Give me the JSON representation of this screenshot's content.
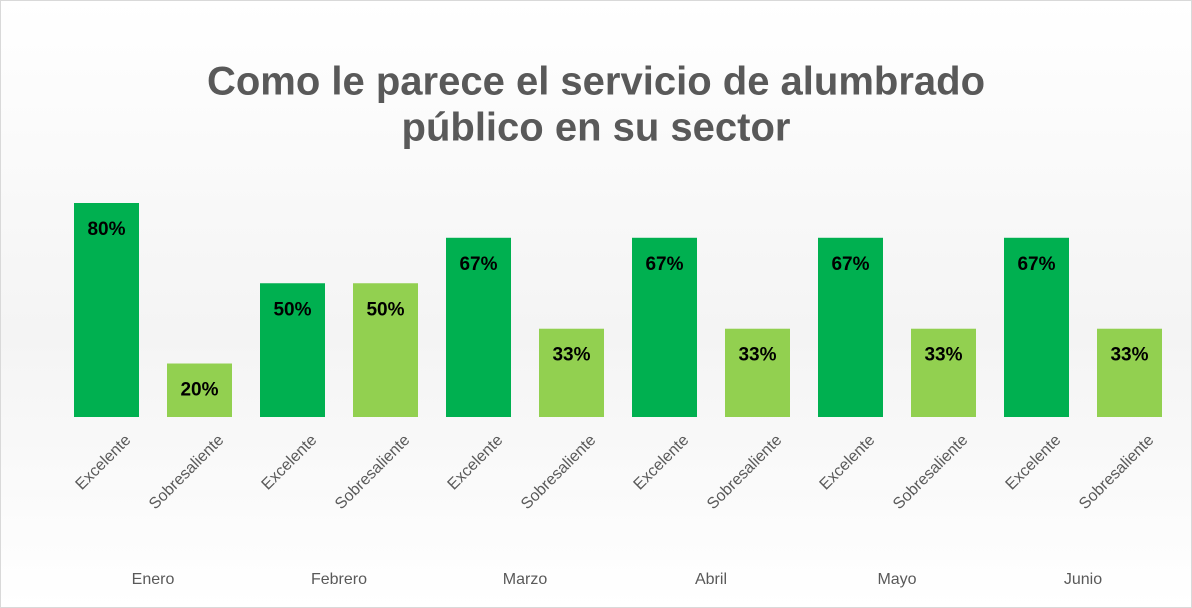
{
  "chart_data": {
    "type": "bar",
    "title": [
      "Como le parece el servicio de alumbrado",
      "público en su sector"
    ],
    "categories": [
      "Enero",
      "Febrero",
      "Marzo",
      "Abril",
      "Mayo",
      "Junio"
    ],
    "series": [
      {
        "name": "Excelente",
        "color": "#00b050",
        "values": [
          80,
          50,
          67,
          67,
          67,
          67
        ],
        "value_labels": [
          "80%",
          "50%",
          "67%",
          "67%",
          "67%",
          "67%"
        ]
      },
      {
        "name": "Sobresaliente",
        "color": "#92d050",
        "values": [
          20,
          50,
          33,
          33,
          33,
          33
        ],
        "value_labels": [
          "20%",
          "50%",
          "33%",
          "33%",
          "33%",
          "33%"
        ]
      }
    ],
    "ylim": [
      0,
      100
    ]
  }
}
